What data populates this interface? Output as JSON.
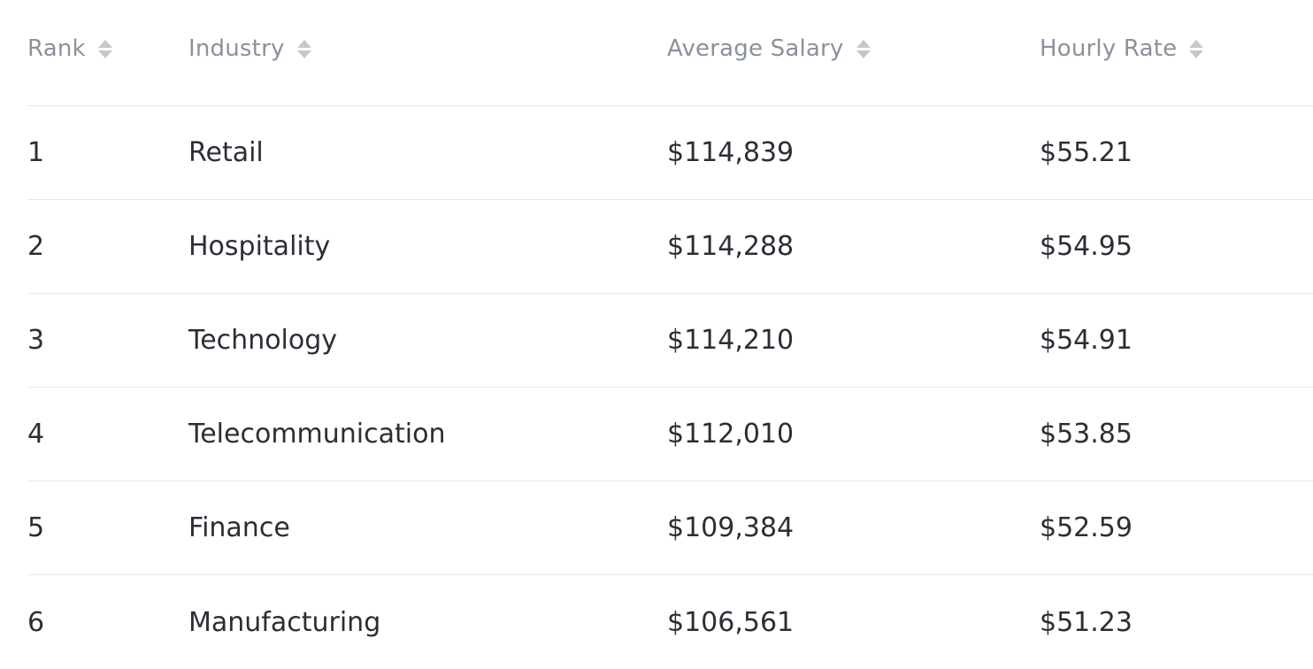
{
  "table": {
    "columns": [
      {
        "label": "Rank",
        "sort_icon": "sort-icon"
      },
      {
        "label": "Industry",
        "sort_icon": "sort-icon"
      },
      {
        "label": "Average Salary",
        "sort_icon": "sort-icon"
      },
      {
        "label": "Hourly Rate",
        "sort_icon": "sort-icon"
      }
    ],
    "rows": [
      {
        "rank": "1",
        "industry": "Retail",
        "salary": "$114,839",
        "hourly": "$55.21"
      },
      {
        "rank": "2",
        "industry": "Hospitality",
        "salary": "$114,288",
        "hourly": "$54.95"
      },
      {
        "rank": "3",
        "industry": "Technology",
        "salary": "$114,210",
        "hourly": "$54.91"
      },
      {
        "rank": "4",
        "industry": "Telecommunication",
        "salary": "$112,010",
        "hourly": "$53.85"
      },
      {
        "rank": "5",
        "industry": "Finance",
        "salary": "$109,384",
        "hourly": "$52.59"
      },
      {
        "rank": "6",
        "industry": "Manufacturing",
        "salary": "$106,561",
        "hourly": "$51.23"
      }
    ]
  }
}
